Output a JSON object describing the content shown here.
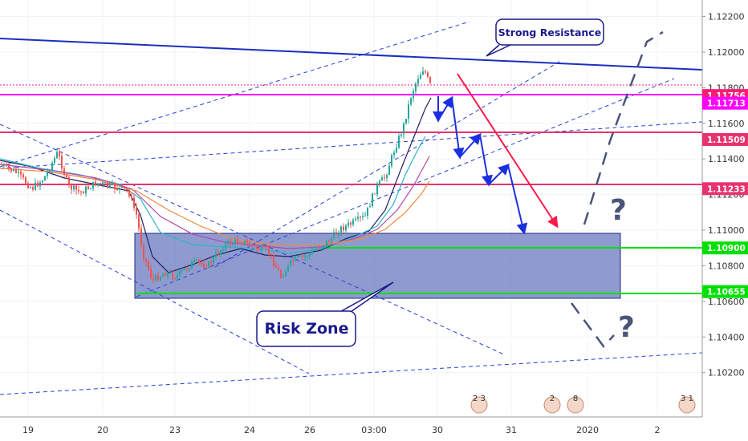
{
  "chart_data": {
    "type": "candlestick",
    "title": "",
    "ylim": [
      1.1005,
      1.1227
    ],
    "y_ticks": [
      "1.12200",
      "1.12000",
      "1.11800",
      "1.11600",
      "1.11400",
      "1.11200",
      "1.11000",
      "1.10800",
      "1.10600",
      "1.10400",
      "1.10200"
    ],
    "x_ticks": [
      "19",
      "20",
      "23",
      "24",
      "26",
      "03:00",
      "30",
      "31",
      "2020",
      "2"
    ],
    "price_levels": [
      {
        "label": "1.11756",
        "color": "#ff1a75"
      },
      {
        "label": "1.11713",
        "color": "#ff00ff"
      },
      {
        "label": "1.11509",
        "color": "#e8336f"
      },
      {
        "label": "1.11233",
        "color": "#e8336f"
      },
      {
        "label": "1.10900",
        "color": "#00e000"
      },
      {
        "label": "1.10655",
        "color": "#00e000"
      }
    ],
    "annotations": {
      "strong_resistance": "Strong Resistance",
      "risk_zone": "Risk Zone",
      "question_1": "?",
      "question_2": "?"
    },
    "event_badges": [
      "2 3",
      "2",
      "8",
      "3 1"
    ],
    "colors": {
      "up": "#26a69a",
      "down": "#ef5350",
      "resistance": "#1a2fbf",
      "channel": "#2b3fd6",
      "zone": "#4a5eb0",
      "bearish_arrow": "#ff1a4a",
      "bullish_path": "#4a5578",
      "callout_border": "#1a1a8c"
    }
  }
}
